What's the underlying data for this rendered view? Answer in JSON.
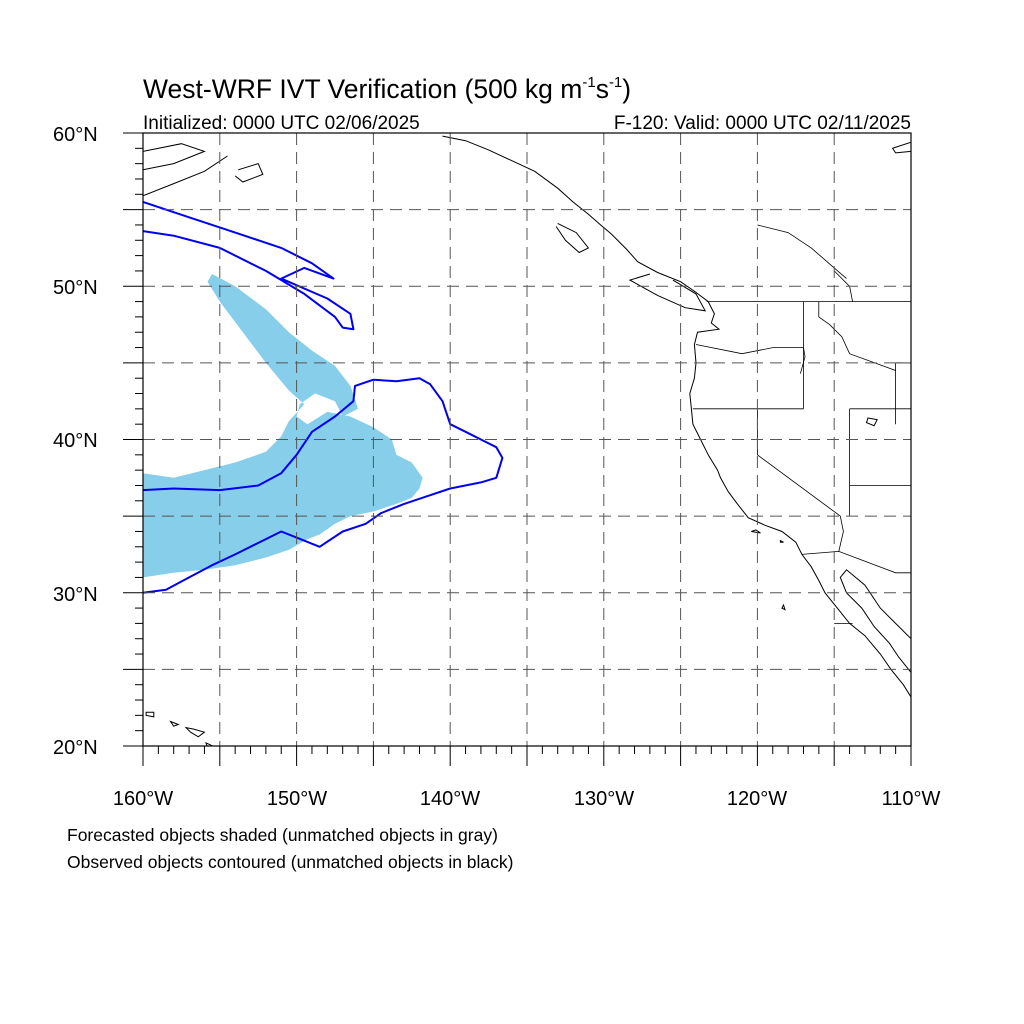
{
  "title": {
    "main": "West-WRF IVT Verification (500 kg m",
    "sup1": "-1",
    "mid": "s",
    "sup2": "-1",
    "end": ")"
  },
  "init_label": "Initialized: 0000 UTC 02/06/2025",
  "valid_label": "F-120: Valid: 0000 UTC 02/11/2025",
  "lat_labels": [
    "60°N",
    "50°N",
    "40°N",
    "30°N",
    "20°N"
  ],
  "lon_labels": [
    "160°W",
    "150°W",
    "140°W",
    "130°W",
    "120°W",
    "110°W"
  ],
  "notes": {
    "forecast": "Forecasted objects shaded (unmatched objects in gray)",
    "observed": "Observed objects contoured (unmatched objects in black)"
  },
  "map_data": {
    "projection": "cylindrical-equidistant",
    "lon_range": [
      -160,
      -110
    ],
    "lat_range": [
      20,
      60
    ],
    "grid": "dashed every 5 degrees",
    "colors": {
      "forecast_fill": "#87ceeb",
      "observed_contour": "#0000ee",
      "coast": "#000000"
    },
    "forecast_objects": [
      {
        "polygon": [
          [
            -155.5,
            50.8
          ],
          [
            -154.0,
            50.0
          ],
          [
            -152.0,
            48.5
          ],
          [
            -150.5,
            47.0
          ],
          [
            -149.0,
            45.8
          ],
          [
            -147.5,
            44.8
          ],
          [
            -146.5,
            43.5
          ],
          [
            -146.0,
            42.0
          ],
          [
            -147.0,
            41.5
          ],
          [
            -147.5,
            42.5
          ],
          [
            -148.8,
            43.0
          ],
          [
            -149.8,
            42.3
          ],
          [
            -150.0,
            41.5
          ],
          [
            -149.3,
            41.0
          ],
          [
            -148.0,
            41.8
          ],
          [
            -146.5,
            41.5
          ],
          [
            -145.0,
            40.8
          ],
          [
            -143.8,
            40.0
          ],
          [
            -143.5,
            39.0
          ],
          [
            -142.5,
            38.5
          ],
          [
            -141.8,
            37.5
          ],
          [
            -142.0,
            36.8
          ],
          [
            -142.5,
            36.2
          ],
          [
            -143.5,
            35.8
          ],
          [
            -145.0,
            35.3
          ],
          [
            -146.5,
            35.0
          ],
          [
            -147.5,
            34.5
          ],
          [
            -148.5,
            33.8
          ],
          [
            -149.3,
            33.5
          ],
          [
            -150.5,
            32.8
          ],
          [
            -152.0,
            32.3
          ],
          [
            -154.0,
            31.8
          ],
          [
            -156.0,
            31.5
          ],
          [
            -158.0,
            31.3
          ],
          [
            -160.0,
            31.0
          ],
          [
            -160.0,
            37.8
          ],
          [
            -158.0,
            37.5
          ],
          [
            -156.0,
            38.0
          ],
          [
            -154.0,
            38.5
          ],
          [
            -152.0,
            39.2
          ],
          [
            -151.0,
            40.2
          ],
          [
            -150.5,
            41.2
          ],
          [
            -149.5,
            42.3
          ],
          [
            -150.5,
            43.2
          ],
          [
            -152.0,
            45.0
          ],
          [
            -153.5,
            47.0
          ],
          [
            -155.0,
            49.0
          ],
          [
            -155.8,
            50.3
          ]
        ]
      }
    ],
    "observed_objects": [
      {
        "polygon": [
          [
            -160.0,
            36.7
          ],
          [
            -158.0,
            36.8
          ],
          [
            -155.0,
            36.7
          ],
          [
            -152.5,
            37.0
          ],
          [
            -151.0,
            37.8
          ],
          [
            -150.0,
            39.0
          ],
          [
            -149.0,
            40.5
          ],
          [
            -147.5,
            41.5
          ],
          [
            -146.3,
            42.5
          ],
          [
            -146.2,
            43.5
          ],
          [
            -145.0,
            43.9
          ],
          [
            -143.5,
            43.8
          ],
          [
            -142.0,
            44.0
          ],
          [
            -141.3,
            43.6
          ],
          [
            -140.5,
            42.5
          ],
          [
            -140.0,
            41.0
          ],
          [
            -139.0,
            40.5
          ],
          [
            -138.0,
            40.0
          ],
          [
            -137.0,
            39.5
          ],
          [
            -136.6,
            38.8
          ],
          [
            -137.0,
            37.5
          ],
          [
            -138.0,
            37.2
          ],
          [
            -140.0,
            36.8
          ],
          [
            -141.5,
            36.3
          ],
          [
            -143.0,
            35.8
          ],
          [
            -144.5,
            35.2
          ],
          [
            -145.5,
            34.5
          ],
          [
            -147.0,
            34.0
          ],
          [
            -148.5,
            33.0
          ],
          [
            -150.0,
            33.6
          ],
          [
            -151.0,
            34.0
          ],
          [
            -152.0,
            33.5
          ],
          [
            -154.0,
            32.5
          ],
          [
            -155.5,
            31.8
          ],
          [
            -157.0,
            31.0
          ],
          [
            -158.5,
            30.2
          ],
          [
            -160.0,
            30.0
          ]
        ]
      },
      {
        "polygon": [
          [
            -160.0,
            55.5
          ],
          [
            -157.0,
            54.5
          ],
          [
            -154.0,
            53.5
          ],
          [
            -151.0,
            52.5
          ],
          [
            -149.0,
            51.5
          ],
          [
            -147.6,
            50.5
          ],
          [
            -149.5,
            51.2
          ],
          [
            -151.0,
            50.5
          ],
          [
            -148.0,
            49.2
          ],
          [
            -146.5,
            48.2
          ],
          [
            -146.3,
            47.2
          ],
          [
            -147.0,
            47.3
          ],
          [
            -147.5,
            48.0
          ],
          [
            -149.5,
            49.5
          ],
          [
            -152.0,
            51.0
          ],
          [
            -155.0,
            52.5
          ],
          [
            -158.0,
            53.3
          ],
          [
            -160.0,
            53.6
          ]
        ]
      }
    ],
    "coastlines": [
      [
        [
          -160,
          57.6
        ],
        [
          -158.0,
          58.0
        ],
        [
          -156.0,
          58.8
        ],
        [
          -157.5,
          59.3
        ],
        [
          -160,
          58.8
        ]
      ],
      [
        [
          -160,
          55.9
        ],
        [
          -158.0,
          56.7
        ],
        [
          -156.0,
          57.5
        ],
        [
          -154.5,
          58.5
        ]
      ],
      [
        [
          -153.8,
          57.6
        ],
        [
          -152.5,
          58.0
        ],
        [
          -152.2,
          57.3
        ],
        [
          -153.5,
          56.8
        ],
        [
          -154.0,
          57.2
        ]
      ],
      [
        [
          -140.5,
          59.8
        ],
        [
          -139.0,
          59.5
        ],
        [
          -137.5,
          58.9
        ],
        [
          -136.0,
          58.2
        ],
        [
          -134.5,
          57.5
        ],
        [
          -133.0,
          56.4
        ],
        [
          -132.0,
          55.5
        ],
        [
          -131.0,
          54.7
        ],
        [
          -130.2,
          54.0
        ],
        [
          -129.5,
          53.4
        ],
        [
          -128.5,
          52.4
        ],
        [
          -127.8,
          51.6
        ],
        [
          -126.5,
          50.9
        ],
        [
          -125.0,
          50.3
        ],
        [
          -124.0,
          49.6
        ],
        [
          -123.2,
          49.0
        ],
        [
          -122.8,
          48.2
        ],
        [
          -123.0,
          47.6
        ],
        [
          -122.5,
          47.2
        ],
        [
          -123.9,
          47.0
        ],
        [
          -124.1,
          46.2
        ],
        [
          -124.0,
          45.0
        ],
        [
          -124.1,
          44.0
        ],
        [
          -124.4,
          43.0
        ],
        [
          -124.3,
          42.0
        ],
        [
          -124.2,
          41.0
        ],
        [
          -123.8,
          40.2
        ],
        [
          -123.2,
          39.0
        ],
        [
          -122.6,
          38.0
        ],
        [
          -122.4,
          37.5
        ],
        [
          -121.9,
          36.6
        ],
        [
          -121.3,
          35.8
        ],
        [
          -120.6,
          34.9
        ],
        [
          -119.5,
          34.4
        ],
        [
          -118.4,
          34.0
        ],
        [
          -117.5,
          33.3
        ],
        [
          -117.1,
          32.5
        ],
        [
          -116.5,
          31.7
        ],
        [
          -116.0,
          30.8
        ],
        [
          -115.6,
          30.0
        ],
        [
          -114.8,
          29.0
        ],
        [
          -114.0,
          28.0
        ],
        [
          -113.0,
          27.2
        ],
        [
          -112.0,
          26.0
        ],
        [
          -111.3,
          25.0
        ],
        [
          -110.5,
          24.0
        ],
        [
          -110.0,
          23.2
        ]
      ],
      [
        [
          -110,
          27.0
        ],
        [
          -111.0,
          28.0
        ],
        [
          -112.0,
          29.0
        ],
        [
          -113.0,
          30.5
        ],
        [
          -114.2,
          31.5
        ],
        [
          -114.6,
          31.0
        ],
        [
          -114.2,
          30.0
        ],
        [
          -113.2,
          29.0
        ],
        [
          -112.4,
          27.8
        ],
        [
          -111.4,
          26.7
        ],
        [
          -110.8,
          25.8
        ],
        [
          -110,
          24.8
        ]
      ],
      [
        [
          -125.5,
          50.4
        ],
        [
          -124.0,
          49.5
        ],
        [
          -123.4,
          48.4
        ],
        [
          -124.7,
          48.6
        ],
        [
          -126.5,
          49.4
        ],
        [
          -128.3,
          50.4
        ],
        [
          -127.0,
          50.8
        ]
      ],
      [
        [
          -133.0,
          54.1
        ],
        [
          -131.8,
          53.5
        ],
        [
          -131.0,
          52.5
        ],
        [
          -131.6,
          52.2
        ],
        [
          -132.5,
          53.0
        ],
        [
          -133.1,
          53.9
        ]
      ],
      [
        [
          -110,
          59.4
        ],
        [
          -111.2,
          59.0
        ],
        [
          -111.0,
          58.7
        ],
        [
          -110,
          58.8
        ]
      ]
    ],
    "islands": [
      [
        [
          -159.8,
          22.2
        ],
        [
          -159.3,
          22.2
        ],
        [
          -159.3,
          21.9
        ],
        [
          -159.8,
          22.0
        ]
      ],
      [
        [
          -158.2,
          21.6
        ],
        [
          -157.7,
          21.4
        ],
        [
          -158.0,
          21.3
        ]
      ],
      [
        [
          -157.2,
          21.2
        ],
        [
          -156.7,
          21.1
        ],
        [
          -156.0,
          20.9
        ],
        [
          -156.4,
          20.6
        ],
        [
          -156.9,
          20.9
        ]
      ],
      [
        [
          -155.9,
          20.2
        ],
        [
          -155.0,
          19.8
        ],
        [
          -155.3,
          19.6
        ],
        [
          -155.8,
          19.9
        ]
      ],
      [
        [
          -120.4,
          34.0
        ],
        [
          -119.8,
          33.9
        ],
        [
          -120.1,
          34.1
        ]
      ],
      [
        [
          -118.5,
          33.4
        ],
        [
          -118.3,
          33.3
        ],
        [
          -118.5,
          33.3
        ]
      ],
      [
        [
          -118.3,
          29.2
        ],
        [
          -118.2,
          28.9
        ],
        [
          -118.4,
          29.0
        ]
      ],
      [
        [
          -112.8,
          41.4
        ],
        [
          -112.2,
          41.3
        ],
        [
          -112.4,
          40.9
        ],
        [
          -112.9,
          41.1
        ]
      ]
    ],
    "borders": [
      [
        [
          -123.3,
          49.0
        ],
        [
          -110,
          49.0
        ]
      ],
      [
        [
          -124.2,
          42.0
        ],
        [
          -117.0,
          42.0
        ]
      ],
      [
        [
          -124.0,
          46.2
        ],
        [
          -121.0,
          45.6
        ],
        [
          -119.0,
          46.0
        ],
        [
          -117.0,
          46.0
        ],
        [
          -116.9,
          45.4
        ],
        [
          -117.2,
          44.3
        ]
      ],
      [
        [
          -117.0,
          49.0
        ],
        [
          -117.0,
          42.0
        ]
      ],
      [
        [
          -116.0,
          49.0
        ],
        [
          -116.0,
          48.0
        ],
        [
          -115.3,
          47.5
        ],
        [
          -114.5,
          46.7
        ],
        [
          -114.0,
          45.6
        ],
        [
          -111.0,
          44.5
        ]
      ],
      [
        [
          -114.0,
          42.0
        ],
        [
          -110,
          42.0
        ]
      ],
      [
        [
          -114.0,
          42.0
        ],
        [
          -114.0,
          35.0
        ]
      ],
      [
        [
          -120.0,
          42.0
        ],
        [
          -120.0,
          39.0
        ],
        [
          -114.6,
          35.0
        ]
      ],
      [
        [
          -114.0,
          37.0
        ],
        [
          -110,
          37.0
        ]
      ],
      [
        [
          -111.0,
          45.0
        ],
        [
          -110,
          45.0
        ]
      ],
      [
        [
          -111.0,
          41.0
        ],
        [
          -111.0,
          45.0
        ]
      ],
      [
        [
          -117.1,
          32.5
        ],
        [
          -114.7,
          32.7
        ],
        [
          -111.0,
          31.3
        ],
        [
          -110,
          31.3
        ]
      ],
      [
        [
          -114.6,
          35.0
        ],
        [
          -114.4,
          34.0
        ],
        [
          -114.7,
          32.7
        ]
      ],
      [
        [
          -115.0,
          28.0
        ],
        [
          -114.0,
          28.0
        ],
        [
          -113.8,
          28.0
        ]
      ]
    ],
    "inland_lines": [
      [
        [
          -120,
          54.0
        ],
        [
          -118.0,
          53.5
        ],
        [
          -116.5,
          52.5
        ],
        [
          -115.0,
          51.2
        ],
        [
          -114.2,
          50.5
        ]
      ],
      [
        [
          -115.0,
          51.0
        ],
        [
          -114.0,
          50.0
        ],
        [
          -113.8,
          49.0
        ]
      ]
    ]
  }
}
